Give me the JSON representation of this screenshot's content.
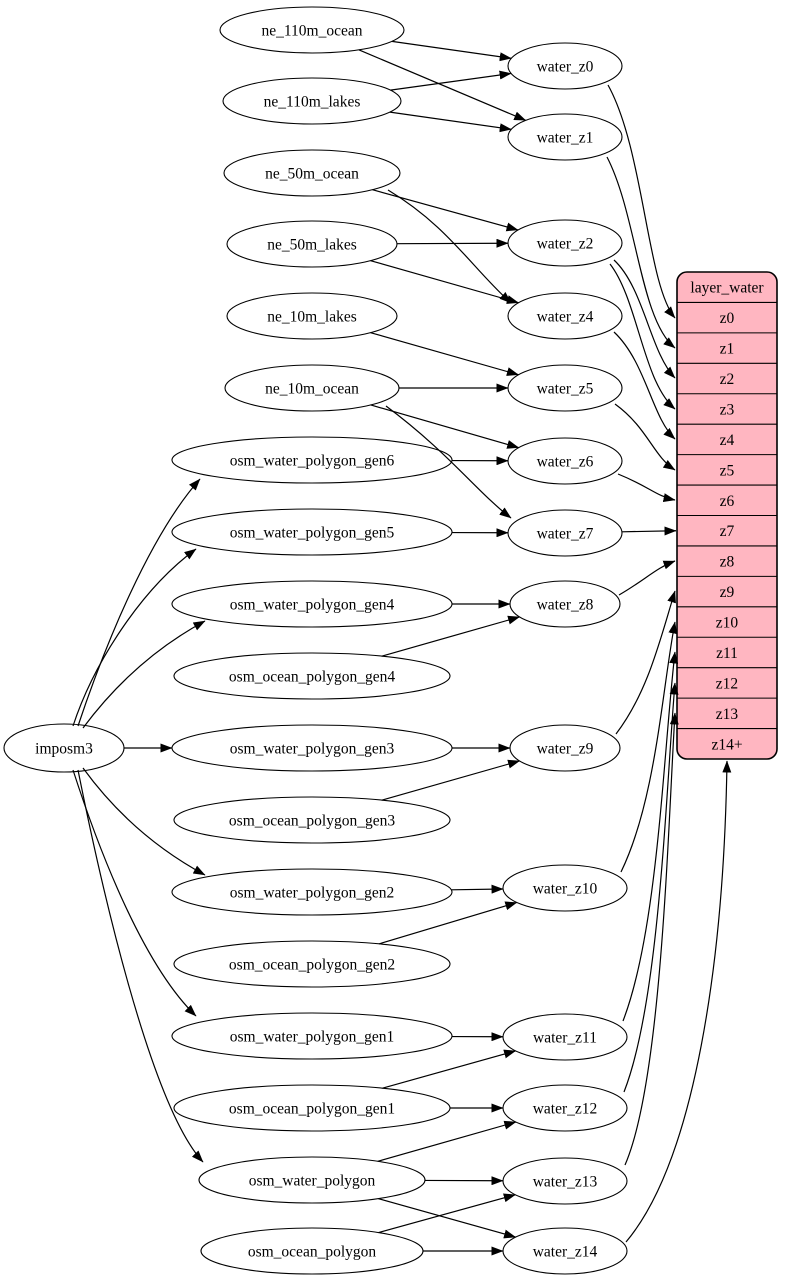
{
  "diagram": {
    "colors": {
      "background": "#ffffff",
      "node_fill": "#ffffff",
      "edge_stroke": "#000000",
      "record_fill": "#ffb6c1"
    },
    "nodes": [
      {
        "id": "imposm3",
        "label": "imposm3"
      },
      {
        "id": "ne_110m_ocean",
        "label": "ne_110m_ocean"
      },
      {
        "id": "ne_110m_lakes",
        "label": "ne_110m_lakes"
      },
      {
        "id": "ne_50m_ocean",
        "label": "ne_50m_ocean"
      },
      {
        "id": "ne_50m_lakes",
        "label": "ne_50m_lakes"
      },
      {
        "id": "ne_10m_lakes",
        "label": "ne_10m_lakes"
      },
      {
        "id": "ne_10m_ocean",
        "label": "ne_10m_ocean"
      },
      {
        "id": "osm_water_polygon_gen6",
        "label": "osm_water_polygon_gen6"
      },
      {
        "id": "osm_water_polygon_gen5",
        "label": "osm_water_polygon_gen5"
      },
      {
        "id": "osm_water_polygon_gen4",
        "label": "osm_water_polygon_gen4"
      },
      {
        "id": "osm_ocean_polygon_gen4",
        "label": "osm_ocean_polygon_gen4"
      },
      {
        "id": "osm_water_polygon_gen3",
        "label": "osm_water_polygon_gen3"
      },
      {
        "id": "osm_ocean_polygon_gen3",
        "label": "osm_ocean_polygon_gen3"
      },
      {
        "id": "osm_water_polygon_gen2",
        "label": "osm_water_polygon_gen2"
      },
      {
        "id": "osm_ocean_polygon_gen2",
        "label": "osm_ocean_polygon_gen2"
      },
      {
        "id": "osm_water_polygon_gen1",
        "label": "osm_water_polygon_gen1"
      },
      {
        "id": "osm_ocean_polygon_gen1",
        "label": "osm_ocean_polygon_gen1"
      },
      {
        "id": "osm_water_polygon",
        "label": "osm_water_polygon"
      },
      {
        "id": "osm_ocean_polygon",
        "label": "osm_ocean_polygon"
      },
      {
        "id": "water_z0",
        "label": "water_z0"
      },
      {
        "id": "water_z1",
        "label": "water_z1"
      },
      {
        "id": "water_z2",
        "label": "water_z2"
      },
      {
        "id": "water_z4",
        "label": "water_z4"
      },
      {
        "id": "water_z5",
        "label": "water_z5"
      },
      {
        "id": "water_z6",
        "label": "water_z6"
      },
      {
        "id": "water_z7",
        "label": "water_z7"
      },
      {
        "id": "water_z8",
        "label": "water_z8"
      },
      {
        "id": "water_z9",
        "label": "water_z9"
      },
      {
        "id": "water_z10",
        "label": "water_z10"
      },
      {
        "id": "water_z11",
        "label": "water_z11"
      },
      {
        "id": "water_z12",
        "label": "water_z12"
      },
      {
        "id": "water_z13",
        "label": "water_z13"
      },
      {
        "id": "water_z14",
        "label": "water_z14"
      }
    ],
    "record": {
      "id": "layer_water",
      "title": "layer_water",
      "rows": [
        "z0",
        "z1",
        "z2",
        "z3",
        "z4",
        "z5",
        "z6",
        "z7",
        "z8",
        "z9",
        "z10",
        "z11",
        "z12",
        "z13",
        "z14+"
      ]
    },
    "edges": [
      {
        "from": "imposm3",
        "to": "osm_water_polygon_gen6"
      },
      {
        "from": "imposm3",
        "to": "osm_water_polygon_gen5"
      },
      {
        "from": "imposm3",
        "to": "osm_water_polygon_gen4"
      },
      {
        "from": "imposm3",
        "to": "osm_water_polygon_gen3"
      },
      {
        "from": "imposm3",
        "to": "osm_water_polygon_gen2"
      },
      {
        "from": "imposm3",
        "to": "osm_water_polygon_gen1"
      },
      {
        "from": "imposm3",
        "to": "osm_water_polygon"
      },
      {
        "from": "ne_110m_ocean",
        "to": "water_z0"
      },
      {
        "from": "ne_110m_ocean",
        "to": "water_z1"
      },
      {
        "from": "ne_110m_lakes",
        "to": "water_z0"
      },
      {
        "from": "ne_110m_lakes",
        "to": "water_z1"
      },
      {
        "from": "ne_50m_ocean",
        "to": "water_z2"
      },
      {
        "from": "ne_50m_ocean",
        "to": "water_z4"
      },
      {
        "from": "ne_50m_lakes",
        "to": "water_z2"
      },
      {
        "from": "ne_50m_lakes",
        "to": "water_z4"
      },
      {
        "from": "ne_10m_lakes",
        "to": "water_z5"
      },
      {
        "from": "ne_10m_ocean",
        "to": "water_z5"
      },
      {
        "from": "ne_10m_ocean",
        "to": "water_z6"
      },
      {
        "from": "ne_10m_ocean",
        "to": "water_z7"
      },
      {
        "from": "osm_water_polygon_gen6",
        "to": "water_z6"
      },
      {
        "from": "osm_water_polygon_gen5",
        "to": "water_z7"
      },
      {
        "from": "osm_water_polygon_gen4",
        "to": "water_z8"
      },
      {
        "from": "osm_ocean_polygon_gen4",
        "to": "water_z8"
      },
      {
        "from": "osm_water_polygon_gen3",
        "to": "water_z9"
      },
      {
        "from": "osm_ocean_polygon_gen3",
        "to": "water_z9"
      },
      {
        "from": "osm_water_polygon_gen2",
        "to": "water_z10"
      },
      {
        "from": "osm_ocean_polygon_gen2",
        "to": "water_z10"
      },
      {
        "from": "osm_water_polygon_gen1",
        "to": "water_z11"
      },
      {
        "from": "osm_ocean_polygon_gen1",
        "to": "water_z11"
      },
      {
        "from": "osm_ocean_polygon_gen1",
        "to": "water_z12"
      },
      {
        "from": "osm_water_polygon",
        "to": "water_z12"
      },
      {
        "from": "osm_water_polygon",
        "to": "water_z13"
      },
      {
        "from": "osm_water_polygon",
        "to": "water_z14"
      },
      {
        "from": "osm_ocean_polygon",
        "to": "water_z13"
      },
      {
        "from": "osm_ocean_polygon",
        "to": "water_z14"
      },
      {
        "from": "water_z0",
        "to": "layer_water",
        "row": "z0"
      },
      {
        "from": "water_z1",
        "to": "layer_water",
        "row": "z1"
      },
      {
        "from": "water_z2",
        "to": "layer_water",
        "row": "z2"
      },
      {
        "from": "water_z2",
        "to": "layer_water",
        "row": "z3"
      },
      {
        "from": "water_z4",
        "to": "layer_water",
        "row": "z4"
      },
      {
        "from": "water_z5",
        "to": "layer_water",
        "row": "z5"
      },
      {
        "from": "water_z6",
        "to": "layer_water",
        "row": "z6"
      },
      {
        "from": "water_z7",
        "to": "layer_water",
        "row": "z7"
      },
      {
        "from": "water_z8",
        "to": "layer_water",
        "row": "z8"
      },
      {
        "from": "water_z9",
        "to": "layer_water",
        "row": "z9"
      },
      {
        "from": "water_z10",
        "to": "layer_water",
        "row": "z10"
      },
      {
        "from": "water_z11",
        "to": "layer_water",
        "row": "z11"
      },
      {
        "from": "water_z12",
        "to": "layer_water",
        "row": "z12"
      },
      {
        "from": "water_z13",
        "to": "layer_water",
        "row": "z13"
      },
      {
        "from": "water_z14",
        "to": "layer_water",
        "row": "z14+"
      }
    ]
  }
}
